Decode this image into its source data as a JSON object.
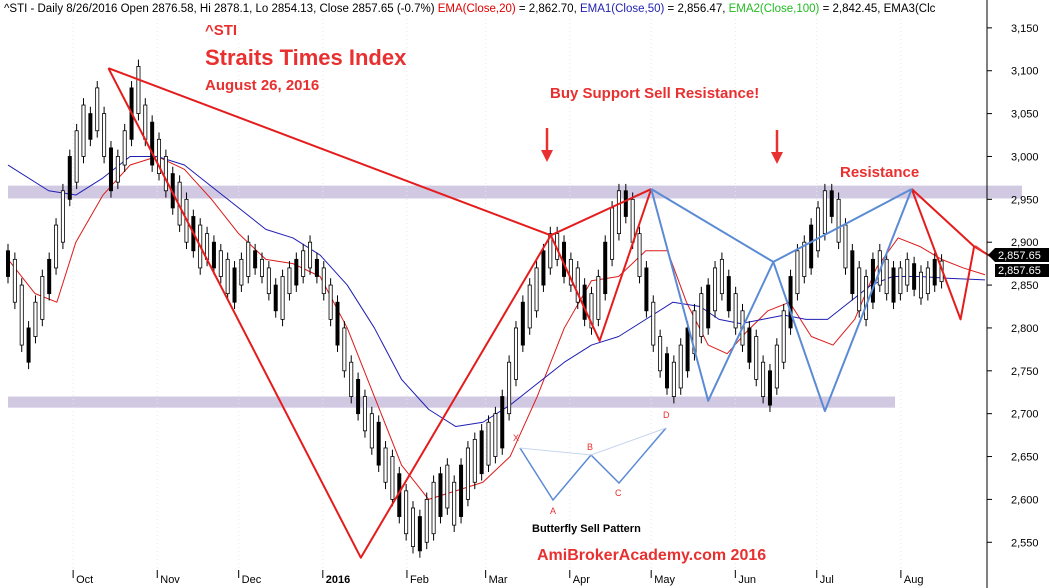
{
  "header": {
    "segments": [
      {
        "text": "^STI - Daily 8/26/2016 Open 2876.58, Hi 2878.1, Lo 2854.13, Close 2857.65 (-0.7%) ",
        "color": "#000000"
      },
      {
        "text": "EMA(Close,20)",
        "color": "#e00000"
      },
      {
        "text": " = 2,862.70, ",
        "color": "#000000"
      },
      {
        "text": "EMA1(Close,50)",
        "color": "#1f1fb4"
      },
      {
        "text": " = 2,856.47, ",
        "color": "#000000"
      },
      {
        "text": "EMA2(Close,100)",
        "color": "#22bb22"
      },
      {
        "text": " = 2,842.45, EMA3(Clc",
        "color": "#000000"
      }
    ]
  },
  "titles": {
    "ticker": "^STI",
    "name": "Straits Times Index",
    "date": "August 26, 2016",
    "buy_sell": "Buy Support Sell Resistance!",
    "resistance": "Resistance",
    "footer": "AmiBrokerAcademy.com  2016",
    "pattern_caption": "Butterfly Sell Pattern"
  },
  "colors": {
    "title_red": "#e83030",
    "zigzag": "#e51c1c",
    "butterfly": "#5b8bd4",
    "ema20": "#dd1a1a",
    "ema50": "#1f1fb4",
    "band": "#c9bedd",
    "candle": "#000000",
    "price_label_bg": "#000000",
    "price_label_fg": "#ffffff"
  },
  "chart_data": {
    "type": "candlestick",
    "ylim": [
      2520,
      3165
    ],
    "y_ticks": [
      2550,
      2600,
      2650,
      2700,
      2750,
      2800,
      2850,
      2900,
      2950,
      3000,
      3050,
      3100,
      3150
    ],
    "y_tick_labels": [
      "2,550",
      "2,600",
      "2,650",
      "2,700",
      "2,750",
      "2,800",
      "2,850",
      "2,900",
      "2,950",
      "3,000",
      "3,050",
      "3,100",
      "3,150"
    ],
    "x_range_days": [
      0,
      340
    ],
    "x_ticks": [
      {
        "label": "Oct",
        "day": 24
      },
      {
        "label": "Nov",
        "day": 55
      },
      {
        "label": "Dec",
        "day": 85
      },
      {
        "label": "2016",
        "day": 116
      },
      {
        "label": "Feb",
        "day": 147
      },
      {
        "label": "Mar",
        "day": 176
      },
      {
        "label": "Apr",
        "day": 207
      },
      {
        "label": "May",
        "day": 237
      },
      {
        "label": "Jun",
        "day": 268
      },
      {
        "label": "Jul",
        "day": 298
      },
      {
        "label": "Aug",
        "day": 329
      }
    ],
    "last_price_labels": [
      "2,857.65",
      "2,857.65"
    ],
    "last_price": 2857.65,
    "bands": [
      {
        "name": "resistance",
        "from": 2951,
        "to": 2966
      },
      {
        "name": "support",
        "from": 2707,
        "to": 2720
      }
    ],
    "zigzag": [
      [
        0,
        2880
      ],
      [
        37,
        3103
      ],
      [
        147,
        2532
      ],
      [
        200,
        2908
      ],
      [
        233,
        2963
      ],
      [
        258,
        2808
      ],
      [
        288,
        2963
      ],
      [
        298,
        2812
      ],
      [
        306,
        2895
      ],
      [
        319,
        2878
      ]
    ],
    "zigzag_start_day": 118,
    "zigzag_real": [
      [
        37,
        3103
      ],
      [
        203,
        2908
      ],
      [
        237,
        2962
      ],
      [
        130,
        2532
      ]
    ],
    "butterfly": [
      [
        238,
        2962
      ],
      [
        256,
        2715
      ],
      [
        280,
        2877
      ],
      [
        303,
        2703
      ],
      [
        322,
        2960
      ]
    ],
    "ema20": [
      [
        0,
        2880
      ],
      [
        10,
        2840
      ],
      [
        18,
        2830
      ],
      [
        25,
        2900
      ],
      [
        35,
        2955
      ],
      [
        45,
        2990
      ],
      [
        55,
        3000
      ],
      [
        65,
        2985
      ],
      [
        75,
        2950
      ],
      [
        85,
        2910
      ],
      [
        95,
        2880
      ],
      [
        105,
        2875
      ],
      [
        115,
        2860
      ],
      [
        125,
        2800
      ],
      [
        135,
        2720
      ],
      [
        145,
        2640
      ],
      [
        155,
        2600
      ],
      [
        165,
        2610
      ],
      [
        175,
        2620
      ],
      [
        185,
        2650
      ],
      [
        195,
        2720
      ],
      [
        205,
        2800
      ],
      [
        215,
        2855
      ],
      [
        225,
        2860
      ],
      [
        235,
        2890
      ],
      [
        243,
        2890
      ],
      [
        250,
        2830
      ],
      [
        258,
        2780
      ],
      [
        265,
        2770
      ],
      [
        272,
        2795
      ],
      [
        280,
        2820
      ],
      [
        288,
        2830
      ],
      [
        296,
        2790
      ],
      [
        304,
        2780
      ],
      [
        312,
        2810
      ],
      [
        320,
        2870
      ],
      [
        328,
        2905
      ],
      [
        336,
        2895
      ],
      [
        344,
        2880
      ],
      [
        352,
        2870
      ],
      [
        360,
        2862
      ]
    ],
    "ema50": [
      [
        0,
        2990
      ],
      [
        15,
        2960
      ],
      [
        25,
        2955
      ],
      [
        35,
        2975
      ],
      [
        45,
        3000
      ],
      [
        55,
        3000
      ],
      [
        65,
        2990
      ],
      [
        75,
        2965
      ],
      [
        85,
        2940
      ],
      [
        95,
        2915
      ],
      [
        105,
        2905
      ],
      [
        115,
        2885
      ],
      [
        125,
        2850
      ],
      [
        135,
        2800
      ],
      [
        145,
        2740
      ],
      [
        155,
        2705
      ],
      [
        165,
        2685
      ],
      [
        175,
        2690
      ],
      [
        185,
        2710
      ],
      [
        195,
        2735
      ],
      [
        205,
        2760
      ],
      [
        215,
        2780
      ],
      [
        225,
        2790
      ],
      [
        235,
        2810
      ],
      [
        245,
        2830
      ],
      [
        255,
        2825
      ],
      [
        262,
        2810
      ],
      [
        270,
        2805
      ],
      [
        278,
        2810
      ],
      [
        286,
        2815
      ],
      [
        294,
        2810
      ],
      [
        302,
        2810
      ],
      [
        310,
        2830
      ],
      [
        318,
        2850
      ],
      [
        326,
        2860
      ],
      [
        336,
        2860
      ],
      [
        346,
        2858
      ],
      [
        360,
        2856
      ]
    ],
    "candles": [
      [
        2860,
        2890
      ],
      [
        2830,
        2880
      ],
      [
        2780,
        2850
      ],
      [
        2760,
        2800
      ],
      [
        2790,
        2830
      ],
      [
        2810,
        2860
      ],
      [
        2840,
        2880
      ],
      [
        2870,
        2920
      ],
      [
        2900,
        2960
      ],
      [
        2950,
        3000
      ],
      [
        2970,
        3030
      ],
      [
        3000,
        3060
      ],
      [
        3020,
        3050
      ],
      [
        3030,
        3080
      ],
      [
        3000,
        3050
      ],
      [
        2960,
        3010
      ],
      [
        2970,
        3000
      ],
      [
        2990,
        3030
      ],
      [
        3020,
        3080
      ],
      [
        3050,
        3105
      ],
      [
        3020,
        3060
      ],
      [
        2990,
        3040
      ],
      [
        2980,
        3020
      ],
      [
        2960,
        3000
      ],
      [
        2940,
        2980
      ],
      [
        2920,
        2970
      ],
      [
        2900,
        2950
      ],
      [
        2890,
        2930
      ],
      [
        2870,
        2920
      ],
      [
        2880,
        2910
      ],
      [
        2870,
        2900
      ],
      [
        2860,
        2890
      ],
      [
        2840,
        2880
      ],
      [
        2830,
        2870
      ],
      [
        2850,
        2880
      ],
      [
        2860,
        2900
      ],
      [
        2870,
        2890
      ],
      [
        2860,
        2880
      ],
      [
        2840,
        2870
      ],
      [
        2820,
        2850
      ],
      [
        2810,
        2860
      ],
      [
        2840,
        2870
      ],
      [
        2850,
        2880
      ],
      [
        2860,
        2890
      ],
      [
        2870,
        2900
      ],
      [
        2860,
        2880
      ],
      [
        2840,
        2870
      ],
      [
        2810,
        2850
      ],
      [
        2780,
        2830
      ],
      [
        2750,
        2800
      ],
      [
        2720,
        2760
      ],
      [
        2700,
        2740
      ],
      [
        2680,
        2720
      ],
      [
        2660,
        2700
      ],
      [
        2640,
        2690
      ],
      [
        2620,
        2660
      ],
      [
        2600,
        2650
      ],
      [
        2580,
        2630
      ],
      [
        2560,
        2610
      ],
      [
        2545,
        2590
      ],
      [
        2540,
        2580
      ],
      [
        2550,
        2600
      ],
      [
        2560,
        2620
      ],
      [
        2580,
        2630
      ],
      [
        2590,
        2640
      ],
      [
        2570,
        2620
      ],
      [
        2580,
        2640
      ],
      [
        2600,
        2660
      ],
      [
        2620,
        2670
      ],
      [
        2630,
        2680
      ],
      [
        2640,
        2690
      ],
      [
        2650,
        2700
      ],
      [
        2660,
        2720
      ],
      [
        2700,
        2760
      ],
      [
        2740,
        2800
      ],
      [
        2780,
        2830
      ],
      [
        2800,
        2850
      ],
      [
        2820,
        2870
      ],
      [
        2850,
        2890
      ],
      [
        2870,
        2910
      ],
      [
        2880,
        2910
      ],
      [
        2860,
        2900
      ],
      [
        2850,
        2880
      ],
      [
        2830,
        2870
      ],
      [
        2810,
        2850
      ],
      [
        2800,
        2840
      ],
      [
        2810,
        2860
      ],
      [
        2840,
        2900
      ],
      [
        2880,
        2940
      ],
      [
        2910,
        2960
      ],
      [
        2930,
        2960
      ],
      [
        2900,
        2950
      ],
      [
        2860,
        2910
      ],
      [
        2820,
        2870
      ],
      [
        2780,
        2830
      ],
      [
        2750,
        2790
      ],
      [
        2730,
        2770
      ],
      [
        2720,
        2760
      ],
      [
        2730,
        2780
      ],
      [
        2750,
        2800
      ],
      [
        2770,
        2820
      ],
      [
        2790,
        2840
      ],
      [
        2800,
        2850
      ],
      [
        2820,
        2870
      ],
      [
        2840,
        2880
      ],
      [
        2820,
        2860
      ],
      [
        2800,
        2840
      ],
      [
        2780,
        2820
      ],
      [
        2760,
        2800
      ],
      [
        2740,
        2790
      ],
      [
        2720,
        2760
      ],
      [
        2710,
        2750
      ],
      [
        2730,
        2780
      ],
      [
        2760,
        2820
      ],
      [
        2800,
        2860
      ],
      [
        2840,
        2890
      ],
      [
        2860,
        2900
      ],
      [
        2870,
        2920
      ],
      [
        2890,
        2940
      ],
      [
        2910,
        2960
      ],
      [
        2930,
        2960
      ],
      [
        2900,
        2950
      ],
      [
        2870,
        2920
      ],
      [
        2840,
        2890
      ],
      [
        2820,
        2870
      ],
      [
        2810,
        2860
      ],
      [
        2830,
        2880
      ],
      [
        2850,
        2890
      ],
      [
        2840,
        2880
      ],
      [
        2830,
        2870
      ],
      [
        2840,
        2870
      ],
      [
        2850,
        2880
      ],
      [
        2845,
        2875
      ],
      [
        2835,
        2865
      ],
      [
        2840,
        2870
      ],
      [
        2850,
        2880
      ],
      [
        2854,
        2878
      ]
    ]
  }
}
